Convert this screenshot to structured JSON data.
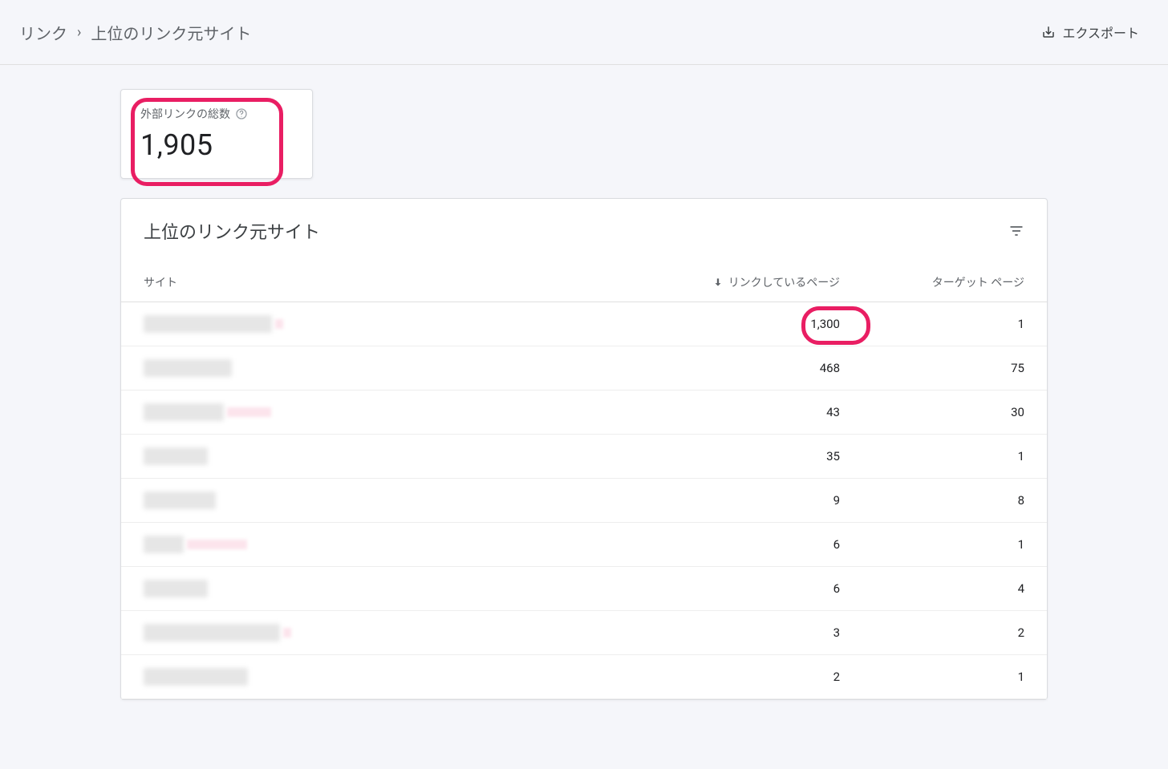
{
  "breadcrumb": {
    "root": "リンク",
    "current": "上位のリンク元サイト"
  },
  "export_label": "エクスポート",
  "summary": {
    "label": "外部リンクの総数",
    "value": "1,905"
  },
  "table": {
    "title": "上位のリンク元サイト",
    "columns": {
      "site": "サイト",
      "linking_pages": "リンクしているページ",
      "target_pages": "ターゲット ページ"
    },
    "rows": [
      {
        "site_width": 160,
        "pink_width": 10,
        "linking": "1,300",
        "target": "1",
        "highlight": true
      },
      {
        "site_width": 110,
        "pink_width": 0,
        "linking": "468",
        "target": "75",
        "highlight": false
      },
      {
        "site_width": 100,
        "pink_width": 55,
        "linking": "43",
        "target": "30",
        "highlight": false
      },
      {
        "site_width": 80,
        "pink_width": 0,
        "linking": "35",
        "target": "1",
        "highlight": false
      },
      {
        "site_width": 90,
        "pink_width": 0,
        "linking": "9",
        "target": "8",
        "highlight": false
      },
      {
        "site_width": 50,
        "pink_width": 75,
        "linking": "6",
        "target": "1",
        "highlight": false
      },
      {
        "site_width": 80,
        "pink_width": 0,
        "linking": "6",
        "target": "4",
        "highlight": false
      },
      {
        "site_width": 170,
        "pink_width": 10,
        "linking": "3",
        "target": "2",
        "highlight": false
      },
      {
        "site_width": 130,
        "pink_width": 0,
        "linking": "2",
        "target": "1",
        "highlight": false
      }
    ]
  },
  "colors": {
    "highlight_ring": "#e91e63",
    "background": "#f5f6fa",
    "card_bg": "#ffffff"
  }
}
